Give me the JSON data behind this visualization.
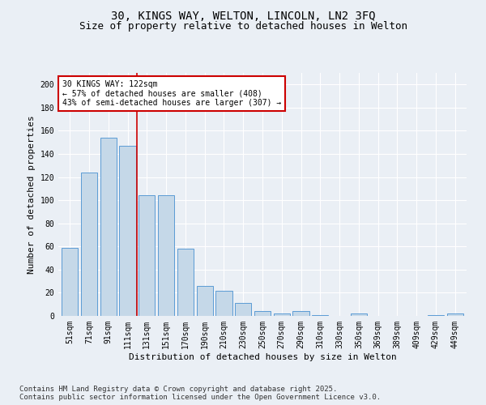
{
  "title_line1": "30, KINGS WAY, WELTON, LINCOLN, LN2 3FQ",
  "title_line2": "Size of property relative to detached houses in Welton",
  "xlabel": "Distribution of detached houses by size in Welton",
  "ylabel": "Number of detached properties",
  "categories": [
    "51sqm",
    "71sqm",
    "91sqm",
    "111sqm",
    "131sqm",
    "151sqm",
    "170sqm",
    "190sqm",
    "210sqm",
    "230sqm",
    "250sqm",
    "270sqm",
    "290sqm",
    "310sqm",
    "330sqm",
    "350sqm",
    "369sqm",
    "389sqm",
    "409sqm",
    "429sqm",
    "449sqm"
  ],
  "values": [
    59,
    124,
    154,
    147,
    104,
    104,
    58,
    26,
    22,
    11,
    4,
    2,
    4,
    1,
    0,
    2,
    0,
    0,
    0,
    1,
    2
  ],
  "bar_color": "#c5d8e8",
  "bar_edge_color": "#5b9bd5",
  "vline_x": 3.5,
  "vline_color": "#cc0000",
  "annotation_text": "30 KINGS WAY: 122sqm\n← 57% of detached houses are smaller (408)\n43% of semi-detached houses are larger (307) →",
  "annotation_box_color": "#ffffff",
  "annotation_box_edge_color": "#cc0000",
  "ylim": [
    0,
    210
  ],
  "yticks": [
    0,
    20,
    40,
    60,
    80,
    100,
    120,
    140,
    160,
    180,
    200
  ],
  "bg_color": "#eaeff5",
  "grid_color": "#ffffff",
  "footer_text": "Contains HM Land Registry data © Crown copyright and database right 2025.\nContains public sector information licensed under the Open Government Licence v3.0.",
  "title_fontsize": 10,
  "subtitle_fontsize": 9,
  "axis_label_fontsize": 8,
  "tick_fontsize": 7,
  "footer_fontsize": 6.5
}
